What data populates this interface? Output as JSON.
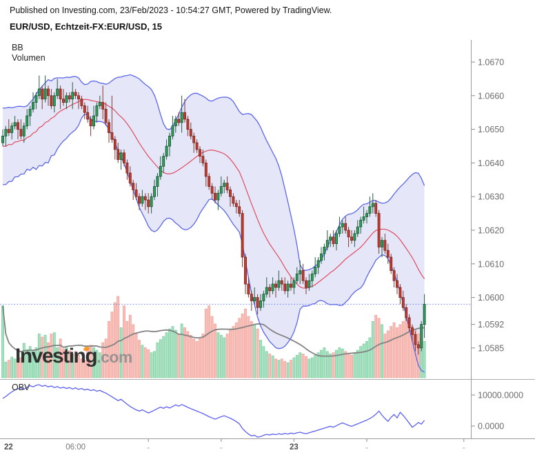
{
  "header": {
    "published_line": "Published on Investing.com, 23/Feb/2023 - 10:54:27 GMT, Powered by TradingView.",
    "title": "EUR/USD, Echtzeit-FX:EUR/USD, 15"
  },
  "legend": {
    "bb_label": "BB",
    "volume_label": "Volumen"
  },
  "obv_panel": {
    "label": "OBV",
    "axis_labels": [
      "10000.0000",
      "0.0000"
    ],
    "axis_values": [
      10000,
      0
    ]
  },
  "watermark": {
    "main": "Investing",
    "suffix": ".com",
    "dot_color": "#f7941d"
  },
  "price_axis": {
    "labels": [
      "1.0670",
      "1.0660",
      "1.0650",
      "1.0640",
      "1.0630",
      "1.0620",
      "1.0610",
      "1.0600",
      "1.0592",
      "1.0585"
    ]
  },
  "time_axis": {
    "ticks": [
      {
        "bar": 0,
        "label": "22",
        "bold": true,
        "tick": false
      },
      {
        "bar": 24,
        "label": "06:00",
        "bold": false,
        "tick": false
      },
      {
        "bar": 48,
        "label": "",
        "bold": false,
        "tick": true
      },
      {
        "bar": 72,
        "label": "",
        "bold": false,
        "tick": true
      },
      {
        "bar": 96,
        "label": "23",
        "bold": true,
        "tick": true
      },
      {
        "bar": 120,
        "label": "",
        "bold": false,
        "tick": true
      },
      {
        "bar": 152,
        "label": "",
        "bold": false,
        "tick": true
      }
    ]
  },
  "colors": {
    "up_body": "#2f9e5b",
    "up_border": "#14532e",
    "up_wick": "#245c42",
    "down_body": "#bf3d33",
    "down_border": "#7a231c",
    "down_wick": "#7c3a33",
    "bb_line": "#5b66e8",
    "bb_fill": "rgba(95,105,215,0.16)",
    "bb_mid": "#e04a5f",
    "vol_up_fill": "#a6e0bf",
    "vol_up_border": "#74cd9c",
    "vol_down_fill": "#f9bdb7",
    "vol_down_border": "#f29d95",
    "vol_ma": "#828282",
    "price_line": "#5f7cf9",
    "obv_line": "#5a5ff0",
    "axis_line": "#9b9b9b",
    "axis_text": "#6b6b6b",
    "time_text_bold": "#4f4f4f",
    "time_text": "#767676"
  },
  "chart_data": {
    "type": "candlestick",
    "symbol": "EUR/USD",
    "interval_minutes": 15,
    "indicators": {
      "bollinger": {
        "period": 20,
        "stdev_mult": 2
      },
      "volume_ma_period": 20,
      "obv_shown": true
    },
    "price_line_value": 1.0598,
    "pre_closes": [
      1.0634,
      1.065,
      1.0638,
      1.0652,
      1.0636,
      1.0648,
      1.064,
      1.0652,
      1.0637,
      1.0649,
      1.0639,
      1.0651,
      1.0638,
      1.065,
      1.0641,
      1.0652,
      1.064,
      1.065,
      1.0642,
      1.0646
    ],
    "candles": [
      [
        1.0646,
        1.065,
        1.0645,
        1.0648
      ],
      [
        1.0648,
        1.0651,
        1.0645,
        1.065
      ],
      [
        1.065,
        1.0653,
        1.0648,
        1.0649
      ],
      [
        1.0649,
        1.0652,
        1.0647,
        1.0651
      ],
      [
        1.0651,
        1.0654,
        1.065,
        1.0652
      ],
      [
        1.0652,
        1.0653,
        1.0647,
        1.065
      ],
      [
        1.065,
        1.0653,
        1.0647,
        1.0648
      ],
      [
        1.0648,
        1.0652,
        1.0646,
        1.0651
      ],
      [
        1.0651,
        1.0656,
        1.065,
        1.0654
      ],
      [
        1.0654,
        1.0657,
        1.0651,
        1.0656
      ],
      [
        1.0656,
        1.0661,
        1.0655,
        1.0658
      ],
      [
        1.0658,
        1.0661,
        1.0656,
        1.066
      ],
      [
        1.066,
        1.0666,
        1.0659,
        1.0662
      ],
      [
        1.0662,
        1.0663,
        1.0656,
        1.0659
      ],
      [
        1.0659,
        1.0666,
        1.0658,
        1.0662
      ],
      [
        1.0662,
        1.0663,
        1.0657,
        1.066
      ],
      [
        1.066,
        1.0662,
        1.0656,
        1.0657
      ],
      [
        1.0657,
        1.0661,
        1.0655,
        1.066
      ],
      [
        1.066,
        1.0665,
        1.0659,
        1.0662
      ],
      [
        1.0662,
        1.0663,
        1.0656,
        1.0659
      ],
      [
        1.0659,
        1.0662,
        1.0657,
        1.0658
      ],
      [
        1.0658,
        1.0661,
        1.0656,
        1.066
      ],
      [
        1.066,
        1.0661,
        1.0658,
        1.0659
      ],
      [
        1.0659,
        1.0664,
        1.0656,
        1.0661
      ],
      [
        1.0661,
        1.0662,
        1.0659,
        1.066
      ],
      [
        1.066,
        1.0661,
        1.0656,
        1.0659
      ],
      [
        1.0659,
        1.066,
        1.0656,
        1.0657
      ],
      [
        1.0657,
        1.0658,
        1.0653,
        1.0655
      ],
      [
        1.0655,
        1.0657,
        1.0652,
        1.0653
      ],
      [
        1.0653,
        1.0654,
        1.0648,
        1.0651
      ],
      [
        1.0651,
        1.0657,
        1.065,
        1.0654
      ],
      [
        1.0654,
        1.0658,
        1.0652,
        1.0657
      ],
      [
        1.0657,
        1.066,
        1.0656,
        1.0658
      ],
      [
        1.0658,
        1.0663,
        1.0653,
        1.0656
      ],
      [
        1.0656,
        1.0658,
        1.0651,
        1.0652
      ],
      [
        1.0652,
        1.0653,
        1.0646,
        1.0649
      ],
      [
        1.0649,
        1.066,
        1.0646,
        1.0647
      ],
      [
        1.0647,
        1.0648,
        1.0641,
        1.0644
      ],
      [
        1.0644,
        1.0646,
        1.064,
        1.0641
      ],
      [
        1.0641,
        1.0644,
        1.0638,
        1.0643
      ],
      [
        1.0643,
        1.0644,
        1.0639,
        1.064
      ],
      [
        1.064,
        1.0641,
        1.0635,
        1.0637
      ],
      [
        1.0637,
        1.0639,
        1.0633,
        1.0634
      ],
      [
        1.0634,
        1.0635,
        1.0629,
        1.0632
      ],
      [
        1.0632,
        1.0634,
        1.0629,
        1.063
      ],
      [
        1.063,
        1.0631,
        1.0626,
        1.0628
      ],
      [
        1.0628,
        1.0632,
        1.0627,
        1.063
      ],
      [
        1.063,
        1.0631,
        1.0626,
        1.0629
      ],
      [
        1.0629,
        1.0631,
        1.0625,
        1.0627
      ],
      [
        1.0627,
        1.0631,
        1.0625,
        1.063
      ],
      [
        1.063,
        1.0635,
        1.0629,
        1.0633
      ],
      [
        1.0633,
        1.0637,
        1.063,
        1.0636
      ],
      [
        1.0636,
        1.0642,
        1.0635,
        1.0639
      ],
      [
        1.0639,
        1.0643,
        1.0637,
        1.0642
      ],
      [
        1.0642,
        1.0647,
        1.0641,
        1.0645
      ],
      [
        1.0645,
        1.0649,
        1.0642,
        1.0648
      ],
      [
        1.0648,
        1.0654,
        1.0647,
        1.0651
      ],
      [
        1.0651,
        1.0654,
        1.0649,
        1.0653
      ],
      [
        1.0653,
        1.0655,
        1.0651,
        1.0652
      ],
      [
        1.0652,
        1.066,
        1.0649,
        1.0655
      ],
      [
        1.0655,
        1.0659,
        1.0652,
        1.0653
      ],
      [
        1.0653,
        1.0654,
        1.0648,
        1.065
      ],
      [
        1.065,
        1.0652,
        1.0647,
        1.0648
      ],
      [
        1.0648,
        1.0649,
        1.0643,
        1.0646
      ],
      [
        1.0646,
        1.0647,
        1.0643,
        1.0644
      ],
      [
        1.0644,
        1.0645,
        1.064,
        1.0642
      ],
      [
        1.0642,
        1.0644,
        1.0639,
        1.064
      ],
      [
        1.064,
        1.0641,
        1.0633,
        1.0636
      ],
      [
        1.0636,
        1.0637,
        1.0632,
        1.0633
      ],
      [
        1.0633,
        1.0634,
        1.0629,
        1.0631
      ],
      [
        1.0631,
        1.0633,
        1.0628,
        1.0629
      ],
      [
        1.0629,
        1.0632,
        1.0626,
        1.0631
      ],
      [
        1.0631,
        1.0636,
        1.063,
        1.0633
      ],
      [
        1.0633,
        1.0635,
        1.0631,
        1.0634
      ],
      [
        1.0634,
        1.0636,
        1.0631,
        1.0632
      ],
      [
        1.0632,
        1.0633,
        1.0627,
        1.063
      ],
      [
        1.063,
        1.0631,
        1.0627,
        1.0628
      ],
      [
        1.0628,
        1.0629,
        1.0625,
        1.0627
      ],
      [
        1.0627,
        1.0629,
        1.0624,
        1.0625
      ],
      [
        1.0625,
        1.0626,
        1.0609,
        1.0612
      ],
      [
        1.0612,
        1.0613,
        1.0601,
        1.0604
      ],
      [
        1.0604,
        1.0606,
        1.06,
        1.0601
      ],
      [
        1.0601,
        1.0602,
        1.0596,
        1.0599
      ],
      [
        1.0599,
        1.0603,
        1.0598,
        1.06
      ],
      [
        1.06,
        1.0601,
        1.0595,
        1.0597
      ],
      [
        1.0597,
        1.0601,
        1.0596,
        1.0599
      ],
      [
        1.0599,
        1.0602,
        1.0597,
        1.0601
      ],
      [
        1.0601,
        1.0606,
        1.06,
        1.0603
      ],
      [
        1.0603,
        1.0604,
        1.06,
        1.0602
      ],
      [
        1.0602,
        1.0606,
        1.0601,
        1.0604
      ],
      [
        1.0604,
        1.0605,
        1.06,
        1.0603
      ],
      [
        1.0603,
        1.0608,
        1.0602,
        1.0605
      ],
      [
        1.0605,
        1.0606,
        1.0602,
        1.0604
      ],
      [
        1.0604,
        1.0606,
        1.0601,
        1.0602
      ],
      [
        1.0602,
        1.0605,
        1.06,
        1.0604
      ],
      [
        1.0604,
        1.0606,
        1.0602,
        1.0603
      ],
      [
        1.0603,
        1.0606,
        1.0601,
        1.0605
      ],
      [
        1.0605,
        1.0609,
        1.0604,
        1.0607
      ],
      [
        1.0607,
        1.0611,
        1.0604,
        1.0608
      ],
      [
        1.0608,
        1.061,
        1.0604,
        1.0605
      ],
      [
        1.0605,
        1.0606,
        1.0601,
        1.0603
      ],
      [
        1.0603,
        1.0607,
        1.0602,
        1.0605
      ],
      [
        1.0605,
        1.0608,
        1.0603,
        1.0607
      ],
      [
        1.0607,
        1.0612,
        1.0606,
        1.0609
      ],
      [
        1.0609,
        1.0612,
        1.0607,
        1.0611
      ],
      [
        1.0611,
        1.0615,
        1.061,
        1.0613
      ],
      [
        1.0613,
        1.0616,
        1.0611,
        1.0615
      ],
      [
        1.0615,
        1.062,
        1.0614,
        1.0617
      ],
      [
        1.0617,
        1.0619,
        1.0615,
        1.0618
      ],
      [
        1.0618,
        1.062,
        1.0615,
        1.0616
      ],
      [
        1.0616,
        1.062,
        1.0614,
        1.0619
      ],
      [
        1.0619,
        1.0624,
        1.0618,
        1.0621
      ],
      [
        1.0621,
        1.0623,
        1.0619,
        1.0622
      ],
      [
        1.0622,
        1.0624,
        1.0619,
        1.062
      ],
      [
        1.062,
        1.0621,
        1.0615,
        1.0618
      ],
      [
        1.0618,
        1.062,
        1.0616,
        1.0617
      ],
      [
        1.0617,
        1.062,
        1.0615,
        1.0619
      ],
      [
        1.0619,
        1.0623,
        1.0618,
        1.0621
      ],
      [
        1.0621,
        1.0624,
        1.0619,
        1.0623
      ],
      [
        1.0623,
        1.0627,
        1.0622,
        1.0624
      ],
      [
        1.0624,
        1.0626,
        1.0622,
        1.0625
      ],
      [
        1.0625,
        1.063,
        1.0624,
        1.0627
      ],
      [
        1.0627,
        1.0631,
        1.0625,
        1.0628
      ],
      [
        1.0628,
        1.0629,
        1.0624,
        1.0625
      ],
      [
        1.0625,
        1.0626,
        1.0613,
        1.0615
      ],
      [
        1.0615,
        1.0618,
        1.0612,
        1.0617
      ],
      [
        1.0617,
        1.0619,
        1.0613,
        1.0614
      ],
      [
        1.0614,
        1.0616,
        1.061,
        1.0612
      ],
      [
        1.0612,
        1.0613,
        1.0607,
        1.0608
      ],
      [
        1.0608,
        1.0609,
        1.0603,
        1.0605
      ],
      [
        1.0605,
        1.0607,
        1.0601,
        1.0603
      ],
      [
        1.0603,
        1.0604,
        1.0598,
        1.06
      ],
      [
        1.06,
        1.0602,
        1.0596,
        1.0597
      ],
      [
        1.0597,
        1.0598,
        1.0593,
        1.0594
      ],
      [
        1.0594,
        1.0595,
        1.059,
        1.0591
      ],
      [
        1.0591,
        1.0592,
        1.0587,
        1.0589
      ],
      [
        1.0589,
        1.059,
        1.0584,
        1.0586
      ],
      [
        1.0586,
        1.0587,
        1.0583,
        1.0585
      ],
      [
        1.0585,
        1.0593,
        1.0584,
        1.0592
      ],
      [
        1.0592,
        1.0601,
        1.0588,
        1.0598
      ]
    ],
    "volume": [
      1150,
      250,
      280,
      330,
      300,
      280,
      320,
      550,
      450,
      500,
      420,
      480,
      700,
      650,
      680,
      560,
      700,
      720,
      480,
      620,
      460,
      500,
      430,
      380,
      420,
      360,
      300,
      280,
      460,
      520,
      480,
      440,
      400,
      560,
      620,
      900,
      1050,
      1200,
      1300,
      800,
      1150,
      900,
      1000,
      850,
      700,
      600,
      520,
      480,
      450,
      400,
      420,
      560,
      610,
      660,
      720,
      780,
      820,
      760,
      700,
      860,
      800,
      740,
      680,
      620,
      580,
      640,
      700,
      1100,
      1150,
      980,
      860,
      720,
      680,
      640,
      700,
      760,
      820,
      880,
      950,
      1020,
      1100,
      980,
      900,
      850,
      780,
      600,
      500,
      420,
      380,
      350,
      300,
      280,
      300,
      260,
      240,
      280,
      320,
      360,
      400,
      380,
      340,
      300,
      320,
      360,
      400,
      440,
      480,
      420,
      380,
      400,
      440,
      480,
      460,
      420,
      380,
      360,
      400,
      440,
      500,
      540,
      580,
      640,
      900,
      1000,
      950,
      850,
      700,
      750,
      820,
      880,
      800,
      850,
      900,
      950,
      880,
      820,
      760,
      700,
      640,
      580
    ],
    "obv": [
      8900,
      9500,
      10300,
      11000,
      11600,
      12000,
      12300,
      11800,
      12500,
      13000,
      12600,
      13100,
      13300,
      12800,
      13100,
      12600,
      12900,
      12400,
      12700,
      12200,
      12500,
      12100,
      12400,
      11900,
      12300,
      11800,
      12100,
      11600,
      11900,
      11400,
      11700,
      11200,
      11500,
      11000,
      10600,
      10000,
      9400,
      8800,
      8200,
      8600,
      7800,
      7000,
      6300,
      5700,
      5200,
      4800,
      5200,
      4700,
      4200,
      4600,
      5100,
      5600,
      6100,
      5700,
      6200,
      5800,
      6300,
      6800,
      6400,
      6900,
      6500,
      6000,
      5600,
      5200,
      4800,
      4400,
      4000,
      3500,
      3000,
      2600,
      2200,
      2600,
      3000,
      3300,
      2900,
      2500,
      2000,
      1400,
      700,
      -800,
      -1800,
      -2600,
      -3200,
      -3000,
      -3600,
      -3400,
      -3000,
      -2700,
      -2900,
      -2600,
      -2800,
      -2500,
      -2700,
      -2400,
      -2600,
      -2300,
      -2500,
      -2200,
      -2000,
      -2300,
      -2500,
      -2200,
      -1900,
      -1600,
      -1300,
      -1000,
      -700,
      -400,
      -100,
      -400,
      100,
      600,
      1000,
      600,
      200,
      -100,
      300,
      700,
      1100,
      1500,
      1900,
      2400,
      3000,
      3800,
      4800,
      3500,
      2400,
      1500,
      2800,
      3700,
      2600,
      4400,
      3400,
      2200,
      900,
      -400,
      300,
      1100,
      600,
      1800
    ]
  }
}
